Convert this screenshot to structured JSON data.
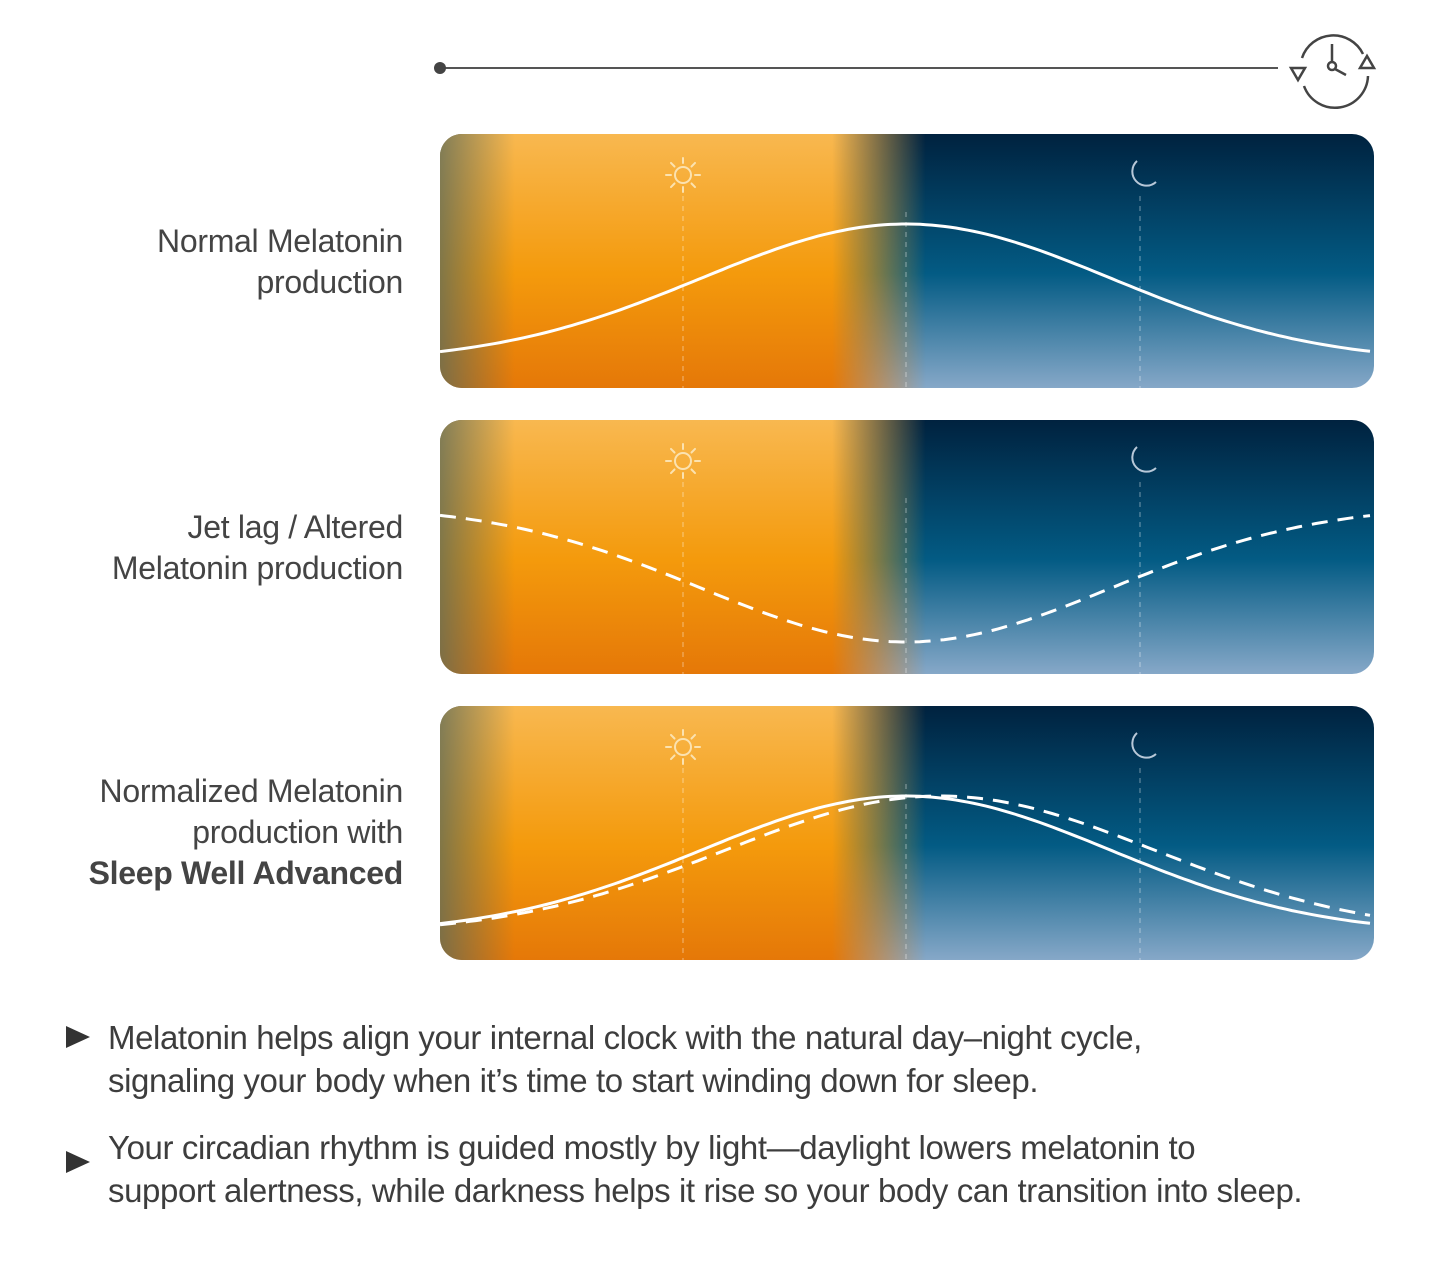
{
  "timeline": {
    "icon": "clock-cycle-icon"
  },
  "panels": [
    {
      "label_lines": [
        "Normal Melatonin",
        "production"
      ],
      "label_bold": "",
      "curves": [
        "normal"
      ],
      "icons": [
        "sun-icon",
        "moon-icon"
      ]
    },
    {
      "label_lines": [
        "Jet lag / Altered",
        "Melatonin production"
      ],
      "label_bold": "",
      "curves": [
        "altered"
      ],
      "icons": [
        "sun-icon",
        "moon-icon"
      ]
    },
    {
      "label_lines": [
        "Normalized Melatonin",
        "production with"
      ],
      "label_bold": "Sleep Well Advanced",
      "curves": [
        "normal",
        "normalized"
      ],
      "icons": [
        "sun-icon",
        "moon-icon"
      ]
    }
  ],
  "colors": {
    "day_top": "#f8b850",
    "day_mid": "#f49a0c",
    "day_bottom": "#e57808",
    "night_top": "#00223f",
    "night_mid": "#035b84",
    "night_bottom": "#86a8c8",
    "text": "#3d3d3d"
  },
  "bullets": [
    {
      "icon": "play-triangle-icon",
      "lines": [
        "Melatonin helps align your internal clock with the natural day–night cycle,",
        "signaling your body when it’s time to start winding down for sleep."
      ]
    },
    {
      "icon": "play-triangle-icon",
      "lines": [
        "Your circadian rhythm is guided mostly by light—daylight lowers melatonin to",
        "support alertness, while darkness helps it rise so your body can transition into sleep."
      ]
    }
  ]
}
